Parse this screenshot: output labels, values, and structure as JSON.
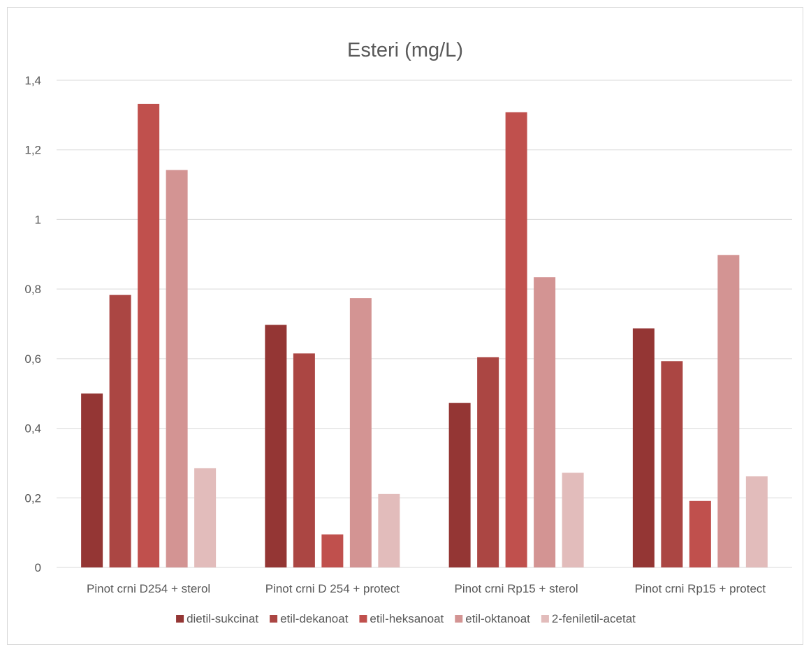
{
  "chart_data": {
    "type": "bar",
    "title": "Esteri (mg/L)",
    "xlabel": "",
    "ylabel": "",
    "ylim": [
      0,
      1.4
    ],
    "yticks": [
      "0",
      "0,2",
      "0,4",
      "0,6",
      "0,8",
      "1",
      "1,2",
      "1,4"
    ],
    "categories": [
      "Pinot crni D254 + sterol",
      "Pinot crni D 254 + protect",
      "Pinot crni Rp15 + sterol",
      "Pinot crni Rp15 + protect"
    ],
    "series": [
      {
        "name": "dietil-sukcinat",
        "color": "#943634",
        "values": [
          0.5,
          0.697,
          0.473,
          0.687
        ]
      },
      {
        "name": "etil-dekanoat",
        "color": "#ab4643",
        "values": [
          0.783,
          0.615,
          0.604,
          0.593
        ]
      },
      {
        "name": "etil-heksanoat",
        "color": "#c0504d",
        "values": [
          1.332,
          0.095,
          1.308,
          0.191
        ]
      },
      {
        "name": "etil-oktanoat",
        "color": "#d39493",
        "values": [
          1.142,
          0.774,
          0.834,
          0.898
        ]
      },
      {
        "name": "2-feniletil-acetat",
        "color": "#e2bcbb",
        "values": [
          0.285,
          0.211,
          0.272,
          0.262
        ]
      }
    ],
    "grid": true,
    "legend_position": "bottom"
  }
}
